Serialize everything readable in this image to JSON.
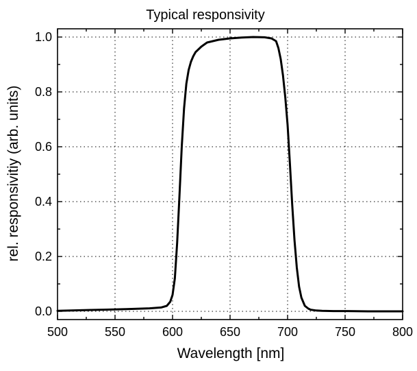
{
  "chart_data": {
    "type": "line",
    "title": "Typical responsivity",
    "xlabel": "Wavelength [nm]",
    "ylabel": "rel. responsivitiy (arb. units)",
    "xlim": [
      500,
      800
    ],
    "ylim": [
      -0.03,
      1.03
    ],
    "x_ticks": [
      500,
      550,
      600,
      650,
      700,
      750,
      800
    ],
    "x_tick_labels": [
      "500",
      "550",
      "600",
      "650",
      "700",
      "750",
      "800"
    ],
    "y_ticks": [
      0.0,
      0.2,
      0.4,
      0.6,
      0.8,
      1.0
    ],
    "y_tick_labels": [
      "0.0",
      "0.2",
      "0.4",
      "0.6",
      "0.8",
      "1.0"
    ],
    "grid": true,
    "line_color": "#000000",
    "series": [
      {
        "x": [
          500,
          520,
          540,
          560,
          580,
          590,
          595,
          598,
          600,
          602,
          604,
          606,
          608,
          610,
          612,
          614,
          616,
          618,
          620,
          625,
          630,
          640,
          650,
          660,
          670,
          680,
          686,
          690,
          692,
          694,
          696,
          698,
          700,
          702,
          704,
          706,
          708,
          710,
          712,
          715,
          718,
          720,
          725,
          730,
          740,
          750,
          770,
          800
        ],
        "y": [
          0.002,
          0.004,
          0.006,
          0.008,
          0.011,
          0.014,
          0.02,
          0.035,
          0.06,
          0.12,
          0.25,
          0.42,
          0.6,
          0.74,
          0.83,
          0.88,
          0.91,
          0.93,
          0.945,
          0.965,
          0.98,
          0.99,
          0.995,
          0.998,
          1.0,
          0.999,
          0.995,
          0.985,
          0.96,
          0.92,
          0.86,
          0.78,
          0.68,
          0.54,
          0.39,
          0.26,
          0.16,
          0.09,
          0.05,
          0.02,
          0.01,
          0.006,
          0.003,
          0.002,
          0.001,
          0.001,
          0.0,
          0.0
        ]
      }
    ]
  }
}
